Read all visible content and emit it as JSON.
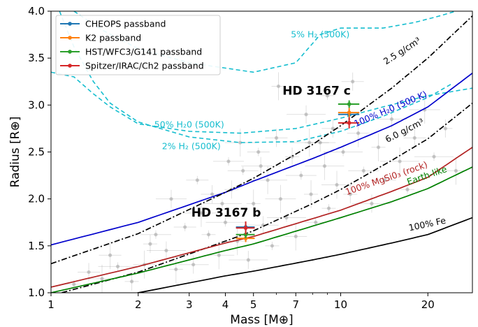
{
  "chart_data": {
    "type": "scatter",
    "xlabel": "Mass [M⊕]",
    "ylabel": "Radius [R⊕]",
    "xscale": "log",
    "xlim": [
      1,
      28.5
    ],
    "ylim": [
      1.0,
      4.0
    ],
    "xticks": [
      1,
      2,
      3,
      4,
      5,
      7,
      10,
      20
    ],
    "yticks": [
      1.0,
      1.5,
      2.0,
      2.5,
      3.0,
      3.5,
      4.0
    ],
    "legend_position": "top-left",
    "legend": [
      {
        "name": "CHEOPS passband",
        "color": "#1f77b4"
      },
      {
        "name": "K2 passband",
        "color": "#ff7f0e"
      },
      {
        "name": "HST/WFC3/G141 passband",
        "color": "#2ca02c"
      },
      {
        "name": "Spitzer/IRAC/Ch2 passband",
        "color": "#d62728"
      }
    ],
    "planets": [
      {
        "name": "HD 3167 b",
        "mass": 4.7,
        "points": [
          {
            "series": "CHEOPS passband",
            "radius": 1.7,
            "mass_err": 0.35,
            "radius_err": 0.04
          },
          {
            "series": "K2 passband",
            "radius": 1.58,
            "mass_err": 0.35,
            "radius_err": 0.04
          },
          {
            "series": "HST/WFC3/G141 passband",
            "radius": 1.62,
            "mass_err": 0.35,
            "radius_err": 0.04
          },
          {
            "series": "Spitzer/IRAC/Ch2 passband",
            "radius": 1.69,
            "mass_err": 0.35,
            "radius_err": 0.07
          }
        ]
      },
      {
        "name": "HD 3167 c",
        "mass": 10.7,
        "points": [
          {
            "series": "CHEOPS passband",
            "radius": 2.9,
            "mass_err": 0.9,
            "radius_err": 0.05
          },
          {
            "series": "K2 passband",
            "radius": 2.92,
            "mass_err": 0.9,
            "radius_err": 0.05
          },
          {
            "series": "HST/WFC3/G141 passband",
            "radius": 3.01,
            "mass_err": 0.9,
            "radius_err": 0.04
          },
          {
            "series": "Spitzer/IRAC/Ch2 passband",
            "radius": 2.81,
            "mass_err": 0.9,
            "radius_err": 0.06
          }
        ]
      }
    ],
    "composition_curves": [
      {
        "label": "100% H₂0 (500 K)",
        "color": "#0000cc",
        "style": "solid",
        "x": [
          1,
          2,
          4,
          5,
          8,
          10,
          15,
          20,
          28.5
        ],
        "y": [
          1.51,
          1.75,
          2.07,
          2.19,
          2.43,
          2.55,
          2.78,
          2.98,
          3.34
        ]
      },
      {
        "label": "2.5 g/cm³",
        "color": "#000000",
        "style": "dashdot",
        "x": [
          1,
          2,
          4,
          5,
          8,
          10,
          15,
          20,
          28.5
        ],
        "y": [
          1.31,
          1.63,
          2.07,
          2.22,
          2.58,
          2.78,
          3.18,
          3.5,
          3.95
        ]
      },
      {
        "label": "6.0 g/cm³",
        "color": "#000000",
        "style": "dashdot",
        "x": [
          1,
          2,
          4,
          5,
          8,
          10,
          15,
          20,
          28.5
        ],
        "y": [
          0.97,
          1.22,
          1.55,
          1.66,
          1.95,
          2.1,
          2.41,
          2.64,
          3.02
        ]
      },
      {
        "label": "100% MgSi0₃ (rock)",
        "color": "#b22222",
        "style": "solid",
        "x": [
          1,
          2,
          4,
          5,
          8,
          10,
          15,
          20,
          28.5
        ],
        "y": [
          1.06,
          1.28,
          1.53,
          1.6,
          1.79,
          1.88,
          2.08,
          2.23,
          2.55
        ]
      },
      {
        "label": "Earth-like",
        "color": "#008000",
        "style": "solid",
        "x": [
          1,
          2,
          4,
          5,
          8,
          10,
          15,
          20,
          28.5
        ],
        "y": [
          1.0,
          1.21,
          1.45,
          1.52,
          1.71,
          1.8,
          1.97,
          2.11,
          2.34
        ]
      },
      {
        "label": "100% Fe",
        "color": "#000000",
        "style": "solid",
        "x": [
          1,
          2,
          4,
          5,
          8,
          10,
          15,
          20,
          28.5
        ],
        "y": [
          0.82,
          1.0,
          1.18,
          1.23,
          1.35,
          1.41,
          1.53,
          1.62,
          1.8
        ]
      }
    ],
    "envelope_curves": [
      {
        "label": "5% H₂ (500K)",
        "color": "#17becf",
        "x": [
          1.07,
          1.2,
          1.4,
          1.6,
          2.0,
          3.0,
          4.5,
          7.0,
          10.0,
          14.0,
          20.0,
          24.0
        ],
        "y": [
          4.0,
          3.62,
          3.25,
          3.02,
          2.82,
          2.66,
          2.6,
          2.61,
          2.72,
          2.88,
          3.08,
          3.22
        ]
      },
      {
        "label": "50% H₂0 (500K)",
        "color": "#17becf",
        "x": [
          1.0,
          1.2,
          1.4,
          1.6,
          2.0,
          3.0,
          4.5,
          7.0,
          10.0,
          14.0,
          20.0,
          28.5
        ],
        "y": [
          3.35,
          3.3,
          3.12,
          2.98,
          2.8,
          2.72,
          2.7,
          2.75,
          2.86,
          2.98,
          3.1,
          3.18
        ]
      },
      {
        "label": "2% H₂ (500K)",
        "color": "#17becf",
        "x": [
          1.2,
          1.5,
          2.0,
          3.0,
          5.0,
          7.0,
          8.5,
          10.0,
          14.0,
          18.0,
          22.0,
          25.0
        ],
        "y": [
          4.0,
          3.8,
          3.6,
          3.45,
          3.35,
          3.45,
          3.75,
          3.82,
          3.82,
          3.88,
          3.95,
          4.0
        ]
      }
    ],
    "curve_labels": [
      {
        "text": "2.5 g/cm³",
        "color": "#000000",
        "mass": 16.5,
        "radius": 3.55,
        "angle": -33
      },
      {
        "text": "100% H₂0 (500 K)",
        "color": "#0000cc",
        "mass": 15.0,
        "radius": 2.93,
        "angle": -23
      },
      {
        "text": "6.0 g/cm³",
        "color": "#000000",
        "mass": 16.8,
        "radius": 2.7,
        "angle": -27
      },
      {
        "text": "100% MgSi0₃ (rock)",
        "color": "#b22222",
        "mass": 14.5,
        "radius": 2.19,
        "angle": -19
      },
      {
        "text": "Earth-like",
        "color": "#008000",
        "mass": 20.0,
        "radius": 2.22,
        "angle": -19
      },
      {
        "text": "100% Fe",
        "color": "#000000",
        "mass": 20.0,
        "radius": 1.7,
        "angle": -12
      },
      {
        "text": "5% H₂ (500K)",
        "color": "#17becf",
        "mass": 8.5,
        "radius": 3.72,
        "angle": 0
      },
      {
        "text": "50% H₂0 (500K)",
        "color": "#17becf",
        "mass": 3.0,
        "radius": 2.76,
        "angle": 0
      },
      {
        "text": "2% H₂ (500K)",
        "color": "#17becf",
        "mass": 3.05,
        "radius": 2.53,
        "angle": 0
      }
    ],
    "planet_labels": [
      {
        "text": "HD 3167 b",
        "mass": 3.05,
        "radius": 1.81
      },
      {
        "text": "HD 3167 c",
        "mass": 6.3,
        "radius": 3.11
      }
    ],
    "background_population": [
      [
        1.2,
        1.09
      ],
      [
        1.35,
        1.22
      ],
      [
        1.5,
        1.15
      ],
      [
        1.7,
        1.28
      ],
      [
        1.9,
        1.12
      ],
      [
        2.1,
        1.3
      ],
      [
        2.3,
        1.62
      ],
      [
        2.5,
        1.45
      ],
      [
        2.7,
        1.25
      ],
      [
        2.9,
        1.7
      ],
      [
        3.1,
        1.3
      ],
      [
        3.3,
        1.85
      ],
      [
        3.5,
        1.62
      ],
      [
        3.6,
        2.05
      ],
      [
        3.8,
        1.4
      ],
      [
        4.0,
        1.75
      ],
      [
        4.2,
        2.1
      ],
      [
        4.4,
        1.55
      ],
      [
        4.6,
        2.3
      ],
      [
        4.8,
        1.35
      ],
      [
        5.0,
        1.95
      ],
      [
        5.2,
        2.5
      ],
      [
        5.4,
        1.72
      ],
      [
        5.6,
        2.2
      ],
      [
        5.8,
        1.5
      ],
      [
        6.0,
        2.65
      ],
      [
        6.2,
        2.0
      ],
      [
        6.5,
        1.8
      ],
      [
        6.8,
        2.45
      ],
      [
        7.0,
        1.6
      ],
      [
        7.3,
        2.25
      ],
      [
        7.6,
        2.9
      ],
      [
        7.9,
        2.05
      ],
      [
        8.2,
        1.75
      ],
      [
        8.5,
        2.6
      ],
      [
        8.8,
        2.35
      ],
      [
        9.1,
        1.9
      ],
      [
        9.4,
        2.75
      ],
      [
        9.7,
        2.15
      ],
      [
        10.2,
        2.5
      ],
      [
        10.8,
        2.05
      ],
      [
        11.5,
        2.7
      ],
      [
        12.0,
        2.3
      ],
      [
        12.8,
        1.95
      ],
      [
        13.5,
        2.55
      ],
      [
        14.2,
        2.2
      ],
      [
        15.0,
        2.85
      ],
      [
        16.0,
        2.4
      ],
      [
        17.0,
        2.1
      ],
      [
        18.0,
        2.65
      ],
      [
        19.5,
        2.95
      ],
      [
        21.0,
        2.45
      ],
      [
        23.0,
        2.75
      ],
      [
        25.0,
        2.3
      ],
      [
        4.1,
        2.4
      ],
      [
        5.3,
        2.35
      ],
      [
        6.1,
        3.2
      ],
      [
        3.2,
        2.2
      ],
      [
        2.6,
        2.0
      ],
      [
        7.8,
        2.6
      ],
      [
        9.0,
        3.1
      ],
      [
        11.0,
        3.25
      ],
      [
        4.5,
        2.6
      ],
      [
        3.9,
        1.95
      ],
      [
        2.2,
        1.52
      ],
      [
        1.6,
        1.4
      ]
    ]
  }
}
